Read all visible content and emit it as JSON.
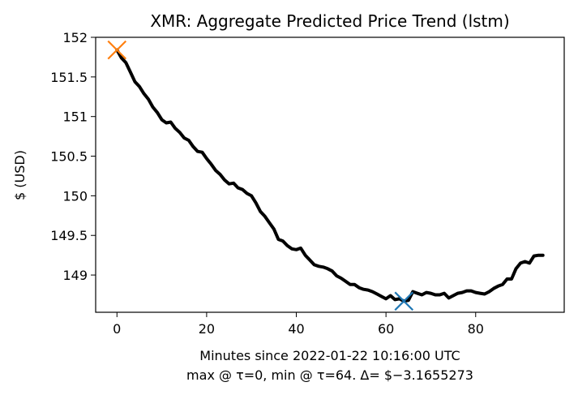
{
  "chart_data": {
    "type": "line",
    "title": "XMR: Aggregate Predicted Price Trend (lstm)",
    "ylabel": "$ (USD)",
    "xlabel_line1": "Minutes since 2022-01-22 10:16:00 UTC",
    "xlabel_line2": "max @ τ=0, min @ τ=64. Δ= $−3.1655273",
    "xlim": [
      -4.75,
      99.75
    ],
    "ylim": [
      148.53,
      152.0
    ],
    "x_ticks": [
      0,
      20,
      40,
      60,
      80
    ],
    "x_tick_labels": [
      "0",
      "20",
      "40",
      "60",
      "80"
    ],
    "y_ticks": [
      149,
      149.5,
      150,
      150.5,
      151,
      151.5,
      152
    ],
    "y_tick_labels": [
      "149",
      "149.5",
      "150",
      "150.5",
      "151",
      "151.5",
      "152"
    ],
    "grid": false,
    "series": [
      {
        "color": "#000000",
        "x": [
          0,
          1,
          2,
          3,
          4,
          5,
          6,
          7,
          8,
          9,
          10,
          11,
          12,
          13,
          14,
          15,
          16,
          17,
          18,
          19,
          20,
          21,
          22,
          23,
          24,
          25,
          26,
          27,
          28,
          29,
          30,
          31,
          32,
          33,
          34,
          35,
          36,
          37,
          38,
          39,
          40,
          41,
          42,
          43,
          44,
          45,
          46,
          47,
          48,
          49,
          50,
          51,
          52,
          53,
          54,
          55,
          56,
          57,
          58,
          59,
          60,
          61,
          62,
          63,
          64,
          65,
          66,
          67,
          68,
          69,
          70,
          71,
          72,
          73,
          74,
          75,
          76,
          77,
          78,
          79,
          80,
          81,
          82,
          83,
          84,
          85,
          86,
          87,
          88,
          89,
          90,
          91,
          92,
          93,
          94,
          95
        ],
        "y": [
          151.84,
          151.74,
          151.68,
          151.56,
          151.44,
          151.38,
          151.29,
          151.22,
          151.12,
          151.05,
          150.96,
          150.92,
          150.93,
          150.85,
          150.8,
          150.73,
          150.7,
          150.62,
          150.56,
          150.55,
          150.47,
          150.4,
          150.32,
          150.27,
          150.2,
          150.15,
          150.16,
          150.1,
          150.08,
          150.03,
          150.0,
          149.91,
          149.8,
          149.74,
          149.66,
          149.58,
          149.45,
          149.43,
          149.37,
          149.33,
          149.32,
          149.34,
          149.25,
          149.19,
          149.13,
          149.11,
          149.1,
          149.08,
          149.05,
          148.99,
          148.96,
          148.92,
          148.88,
          148.88,
          148.84,
          148.82,
          148.81,
          148.79,
          148.76,
          148.73,
          148.7,
          148.74,
          148.69,
          148.7,
          148.67,
          148.68,
          148.79,
          148.77,
          148.75,
          148.78,
          148.77,
          148.75,
          148.75,
          148.77,
          148.71,
          148.74,
          148.77,
          148.78,
          148.8,
          148.8,
          148.78,
          148.77,
          148.76,
          148.79,
          148.83,
          148.86,
          148.88,
          148.95,
          148.95,
          149.08,
          149.15,
          149.17,
          149.15,
          149.24,
          149.25,
          149.25
        ]
      }
    ],
    "markers": [
      {
        "label": "max",
        "x": 0,
        "y": 151.84,
        "color": "#ff7f0e",
        "symbol": "x"
      },
      {
        "label": "min",
        "x": 64,
        "y": 148.67,
        "color": "#1f77b4",
        "symbol": "x"
      }
    ]
  }
}
